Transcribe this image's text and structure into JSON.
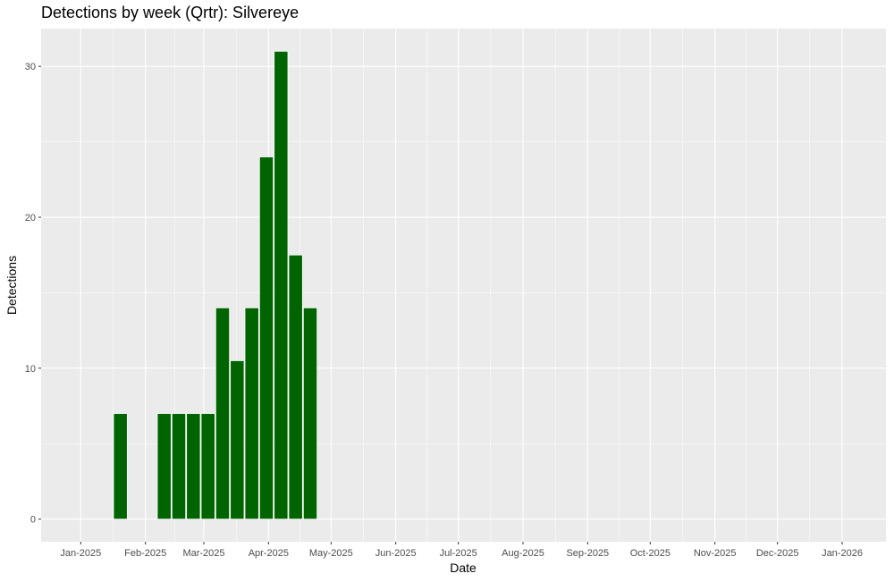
{
  "chart_data": {
    "type": "bar",
    "title": "Detections by week (Qrtr): Silvereye",
    "xlabel": "Date",
    "ylabel": "Detections",
    "x_tick_labels": [
      "Jan-2025",
      "Feb-2025",
      "Mar-2025",
      "Apr-2025",
      "May-2025",
      "Jun-2025",
      "Jul-2025",
      "Aug-2025",
      "Sep-2025",
      "Oct-2025",
      "Nov-2025",
      "Dec-2025",
      "Jan-2026"
    ],
    "x_tick_dates": [
      "2025-01-01",
      "2025-02-01",
      "2025-03-01",
      "2025-04-01",
      "2025-05-01",
      "2025-06-01",
      "2025-07-01",
      "2025-08-01",
      "2025-09-01",
      "2025-10-01",
      "2025-11-01",
      "2025-12-01",
      "2026-01-01"
    ],
    "y_ticks": [
      0,
      10,
      20,
      30
    ],
    "xlim": [
      "2024-12-13",
      "2026-01-22"
    ],
    "ylim": [
      -1.5,
      32.5
    ],
    "bar_color": "#006400",
    "background_color": "#EBEBEB",
    "grid": true,
    "bars": [
      {
        "week": "2025-01-20",
        "value": 7
      },
      {
        "week": "2025-02-10",
        "value": 7
      },
      {
        "week": "2025-02-17",
        "value": 7
      },
      {
        "week": "2025-02-24",
        "value": 7
      },
      {
        "week": "2025-03-03",
        "value": 7
      },
      {
        "week": "2025-03-10",
        "value": 14
      },
      {
        "week": "2025-03-17",
        "value": 10.5
      },
      {
        "week": "2025-03-24",
        "value": 14
      },
      {
        "week": "2025-03-31",
        "value": 24
      },
      {
        "week": "2025-04-07",
        "value": 31
      },
      {
        "week": "2025-04-14",
        "value": 17.5
      },
      {
        "week": "2025-04-21",
        "value": 14
      }
    ]
  }
}
